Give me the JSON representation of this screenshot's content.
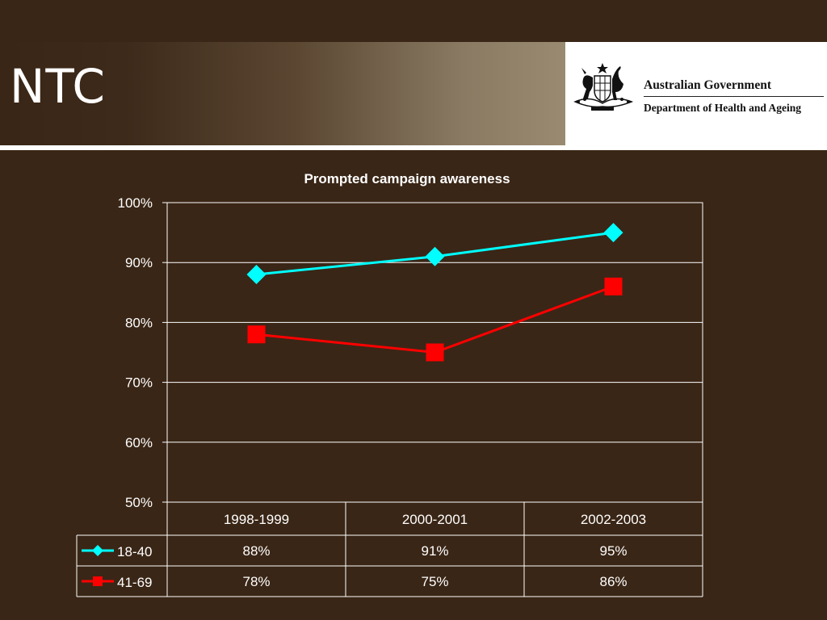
{
  "slide": {
    "title": "NTC"
  },
  "logo": {
    "line1": "Australian Government",
    "line2": "Department of Health and Ageing",
    "crest_icon": "australian-coat-of-arms-icon"
  },
  "chart_data": {
    "type": "line",
    "title": "Prompted campaign awareness",
    "categories": [
      "1998-1999",
      "2000-2001",
      "2002-2003"
    ],
    "series": [
      {
        "name": "18-40",
        "values": [
          88,
          91,
          95
        ],
        "labels": [
          "88%",
          "91%",
          "95%"
        ],
        "color": "#00ffff",
        "marker": "diamond"
      },
      {
        "name": "41-69",
        "values": [
          78,
          75,
          86
        ],
        "labels": [
          "78%",
          "75%",
          "86%"
        ],
        "color": "#ff0000",
        "marker": "square"
      }
    ],
    "ylim": [
      50,
      100
    ],
    "yticks": [
      "100%",
      "90%",
      "80%",
      "70%",
      "60%",
      "50%"
    ],
    "ytick_values": [
      100,
      90,
      80,
      70,
      60,
      50
    ],
    "grid": true,
    "legend": "data-table-left"
  }
}
